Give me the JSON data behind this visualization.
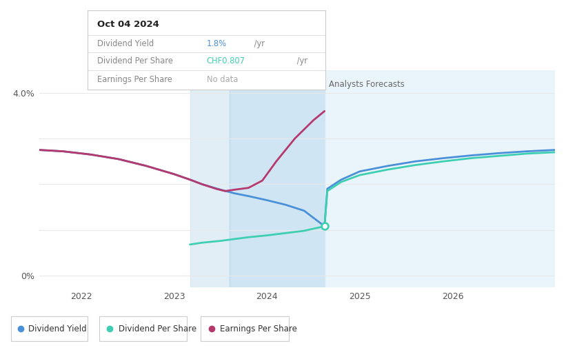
{
  "bg_color": "#ffffff",
  "plot_bg_color": "#ffffff",
  "div_yield_color": "#4a90d9",
  "div_per_share_color": "#3ecfb2",
  "earnings_per_share_color": "#b5386e",
  "grid_color": "#e8e8e8",
  "shade_color_past_light": "#cde3f0",
  "shade_color_past_dark": "#b8d8ee",
  "shade_color_forecast": "#daeef8",
  "past_start": 2023.17,
  "past_mid": 2023.6,
  "past_end": 2024.62,
  "forecast_end": 2027.1,
  "x_min": 2021.55,
  "x_max": 2027.1,
  "y_min": -0.25,
  "y_max": 4.5,
  "y_grid_lines": [
    0.0,
    1.0,
    2.0,
    3.0,
    4.0
  ],
  "marker_x": 2024.62,
  "marker_y": 1.08,
  "div_yield": {
    "x": [
      2021.55,
      2021.8,
      2022.1,
      2022.4,
      2022.7,
      2023.0,
      2023.17,
      2023.3,
      2023.5,
      2023.65,
      2023.8,
      2024.0,
      2024.2,
      2024.4,
      2024.62,
      2024.65,
      2024.8,
      2025.0,
      2025.3,
      2025.6,
      2025.9,
      2026.2,
      2026.5,
      2026.8,
      2027.1
    ],
    "y": [
      2.75,
      2.72,
      2.65,
      2.55,
      2.4,
      2.22,
      2.1,
      2.0,
      1.88,
      1.8,
      1.74,
      1.65,
      1.55,
      1.42,
      1.08,
      1.9,
      2.1,
      2.28,
      2.4,
      2.5,
      2.57,
      2.63,
      2.68,
      2.72,
      2.75
    ]
  },
  "div_per_share": {
    "x": [
      2023.17,
      2023.3,
      2023.5,
      2023.65,
      2023.8,
      2024.0,
      2024.2,
      2024.4,
      2024.62,
      2024.65,
      2024.8,
      2025.0,
      2025.3,
      2025.6,
      2025.9,
      2026.2,
      2026.5,
      2026.8,
      2027.1
    ],
    "y": [
      0.68,
      0.72,
      0.76,
      0.8,
      0.84,
      0.88,
      0.93,
      0.98,
      1.08,
      1.85,
      2.05,
      2.2,
      2.32,
      2.42,
      2.5,
      2.57,
      2.62,
      2.67,
      2.7
    ]
  },
  "earnings_per_share": {
    "x": [
      2021.55,
      2021.8,
      2022.1,
      2022.4,
      2022.7,
      2023.0,
      2023.17,
      2023.3,
      2023.45,
      2023.55,
      2023.65,
      2023.8,
      2023.95,
      2024.1,
      2024.3,
      2024.5,
      2024.62
    ],
    "y": [
      2.75,
      2.72,
      2.65,
      2.55,
      2.4,
      2.22,
      2.1,
      2.0,
      1.9,
      1.85,
      1.88,
      1.92,
      2.08,
      2.5,
      3.0,
      3.4,
      3.6
    ]
  },
  "legend_labels": [
    "Dividend Yield",
    "Dividend Per Share",
    "Earnings Per Share"
  ],
  "legend_colors": [
    "#4a90d9",
    "#3ecfb2",
    "#b5386e"
  ],
  "tooltip": {
    "title": "Oct 04 2024",
    "rows": [
      {
        "label": "Dividend Yield",
        "value": "1.8%",
        "value_color": "#4a90d9",
        "suffix": " /yr"
      },
      {
        "label": "Dividend Per Share",
        "value": "CHF0.807",
        "value_color": "#3ecfb2",
        "suffix": " /yr"
      },
      {
        "label": "Earnings Per Share",
        "value": "No data",
        "value_color": "#aaaaaa",
        "suffix": ""
      }
    ]
  }
}
